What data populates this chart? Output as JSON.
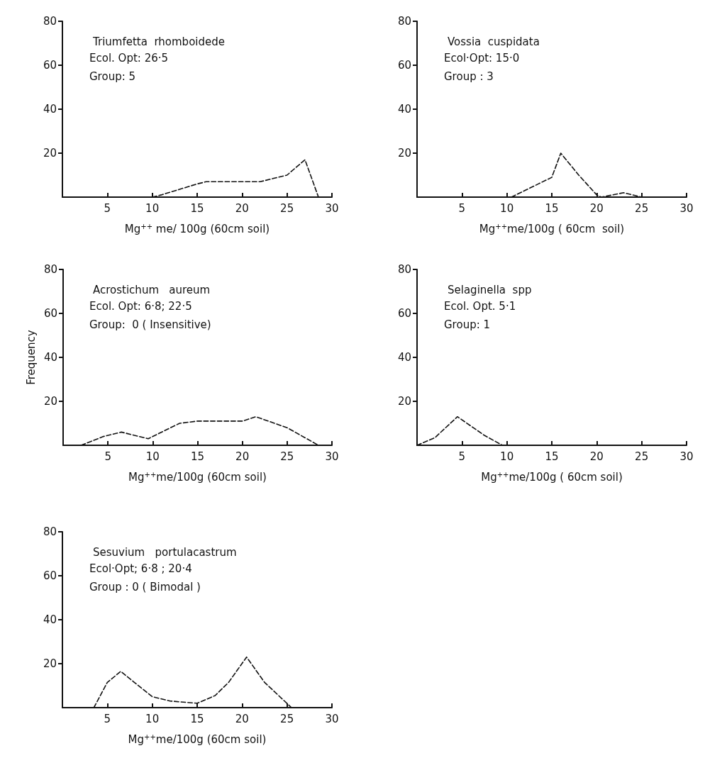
{
  "chart_data": [
    {
      "type": "line",
      "title": "Triumfetta  rhomboidede",
      "annotations": [
        "Ecol. Opt: 26·5",
        "Group: 5"
      ],
      "xlabel": "Mg$^{++}$ me/ 100g (60cm soil)",
      "xlim": [
        0,
        30
      ],
      "xticks": [
        5,
        10,
        15,
        20,
        25,
        30
      ],
      "ylim": [
        0,
        80
      ],
      "yticks": [
        20,
        40,
        60,
        80
      ],
      "line_style": "dashed",
      "series": [
        {
          "color": "#111111",
          "x": [
            10,
            11,
            15,
            16,
            20,
            22,
            25,
            27,
            28.5
          ],
          "values": [
            0,
            1,
            6,
            7,
            7,
            7,
            10,
            17,
            0
          ]
        }
      ]
    },
    {
      "type": "line",
      "title": "Vossia  cuspidata",
      "annotations": [
        "Ecol·Opt: 15·0",
        "Group : 3"
      ],
      "xlabel": "Mg$^{++}$me/100g ( 60cm  soil)",
      "xlim": [
        0,
        30
      ],
      "xticks": [
        5,
        10,
        15,
        20,
        25,
        30
      ],
      "ylim": [
        0,
        80
      ],
      "yticks": [
        20,
        40,
        60,
        80
      ],
      "line_style": "dashed",
      "series": [
        {
          "color": "#111111",
          "x": [
            10.5,
            13.5,
            15,
            16,
            18,
            20,
            20.5,
            23,
            25
          ],
          "values": [
            0,
            6,
            9,
            20,
            10,
            1,
            0,
            2,
            0
          ]
        }
      ]
    },
    {
      "type": "line",
      "title": "Acrostichum   aureum",
      "annotations": [
        "Ecol. Opt: 6·8; 22·5",
        "Group:  0 ( Insensitive)"
      ],
      "xlabel": "Mg$^{++}$me/100g (60cm soil)",
      "ylabel": "Frequency",
      "xlim": [
        0,
        30
      ],
      "xticks": [
        5,
        10,
        15,
        20,
        25,
        30
      ],
      "ylim": [
        0,
        80
      ],
      "yticks": [
        20,
        40,
        60,
        80
      ],
      "line_style": "dashed",
      "series": [
        {
          "color": "#111111",
          "x": [
            2,
            4.5,
            6.5,
            9.5,
            13,
            15,
            20,
            21.5,
            25,
            28.5
          ],
          "values": [
            0,
            4,
            6,
            3,
            10,
            11,
            11,
            13,
            8,
            0
          ]
        }
      ]
    },
    {
      "type": "line",
      "title": "Selaginella  spp",
      "annotations": [
        "Ecol. Opt. 5·1",
        "Group: 1"
      ],
      "xlabel": "Mg$^{++}$me/100g ( 60cm soil)",
      "xlim": [
        0,
        30
      ],
      "xticks": [
        5,
        10,
        15,
        20,
        25,
        30
      ],
      "ylim": [
        0,
        80
      ],
      "yticks": [
        20,
        40,
        60,
        80
      ],
      "line_style": "dashed",
      "series": [
        {
          "color": "#111111",
          "x": [
            0,
            2,
            4.5,
            7.5,
            9.5
          ],
          "values": [
            0,
            3.5,
            13,
            4.5,
            0
          ]
        }
      ]
    },
    {
      "type": "line",
      "title": "Sesuvium   portulacastrum",
      "annotations": [
        "Ecol·Opt; 6·8 ; 20·4",
        "Group : 0 ( Bimodal )"
      ],
      "xlabel": "Mg$^{++}$me/100g (60cm soil)",
      "xlim": [
        0,
        30
      ],
      "xticks": [
        5,
        10,
        15,
        20,
        25,
        30
      ],
      "ylim": [
        0,
        80
      ],
      "yticks": [
        20,
        40,
        60,
        80
      ],
      "line_style": "dashed",
      "series": [
        {
          "color": "#111111",
          "x": [
            3.5,
            5,
            6.5,
            8,
            10,
            12,
            15,
            17,
            18.5,
            20.5,
            22.5,
            25.5
          ],
          "values": [
            0,
            11.5,
            16.5,
            11.5,
            5,
            3,
            2,
            5.5,
            11.5,
            23,
            11.5,
            0
          ]
        }
      ]
    }
  ]
}
